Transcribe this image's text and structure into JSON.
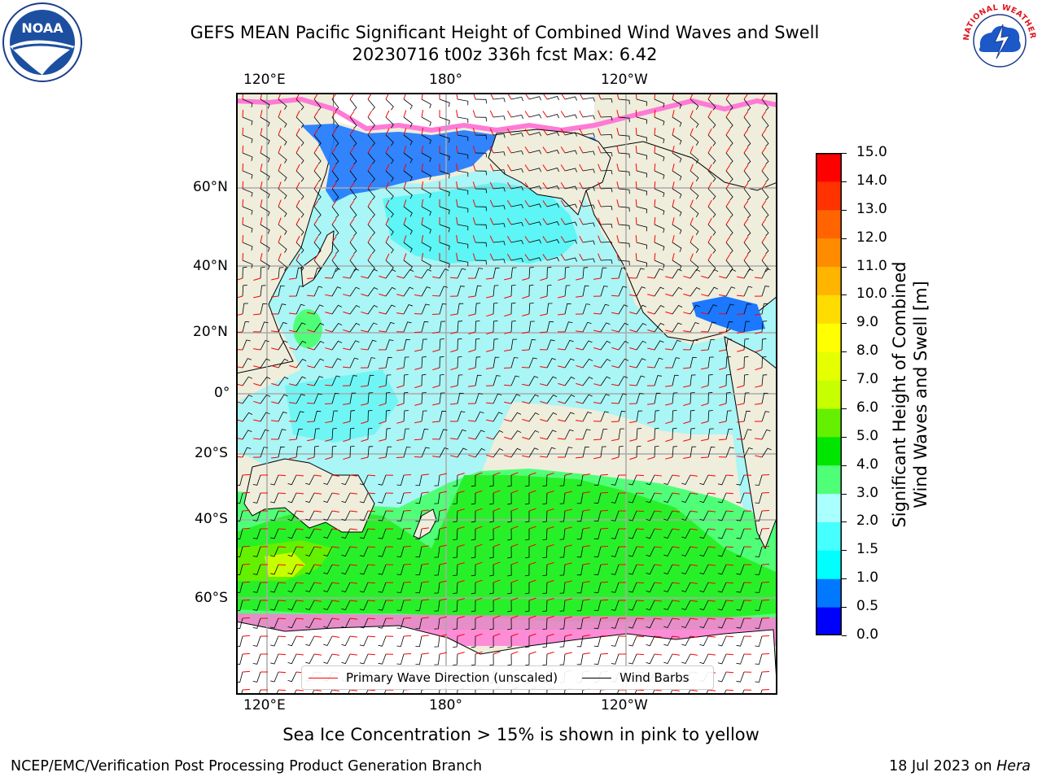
{
  "title": {
    "line1": "GEFS MEAN Pacific Significant Height of Combined Wind Waves and Swell",
    "line2": "20230716 t00z 336h fcst   Max: 6.42"
  },
  "logos": {
    "left": "NOAA",
    "right": "NATIONAL WEATHER SERVICE"
  },
  "map": {
    "top_lon_labels": [
      "120°E",
      "180°",
      "120°W"
    ],
    "bottom_lon_labels": [
      "120°E",
      "180°",
      "120°W"
    ],
    "lat_labels": [
      "60°N",
      "40°N",
      "20°N",
      "0°",
      "20°S",
      "40°S",
      "60°S"
    ],
    "colors": {
      "land": "#efeddb",
      "ocean": "#aaf5f5",
      "ice": "#ffffff",
      "grid": "#aaaaaa"
    }
  },
  "legend": {
    "wave_label": "Primary Wave Direction (unscaled)",
    "barb_label": "Wind Barbs",
    "wave_color": "#ff0000",
    "barb_color": "#000000"
  },
  "colorbar": {
    "label_line1": "Significant Height of Combined",
    "label_line2": "Wind Waves and Swell [m]",
    "ticks": [
      "15.0",
      "14.0",
      "13.0",
      "12.0",
      "11.0",
      "10.0",
      "9.0",
      "8.0",
      "7.0",
      "6.0",
      "5.0",
      "4.0",
      "3.0",
      "2.0",
      "1.5",
      "1.0",
      "0.5",
      "0.0"
    ],
    "colors_bottom_to_top": [
      "#0000ff",
      "#0078ff",
      "#00ffff",
      "#46ffff",
      "#aaffff",
      "#50ff78",
      "#00e600",
      "#64f000",
      "#c8ff00",
      "#e6ff00",
      "#ffff00",
      "#ffdc00",
      "#ffb400",
      "#ff8c00",
      "#ff6400",
      "#ff3200",
      "#ff0000"
    ]
  },
  "subtitle": "Sea Ice Concentration > 15% is shown in pink to yellow",
  "footer": {
    "left": "NCEP/EMC/Verification Post Processing Product Generation Branch",
    "right_date": "18 Jul 2023 on ",
    "right_host": "Hera"
  }
}
